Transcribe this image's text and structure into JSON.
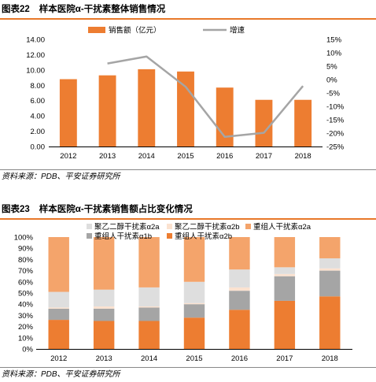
{
  "chart_data": [
    {
      "type": "bar",
      "figure_number": "图表22",
      "title": "样本医院α-干扰素整体销售情况",
      "categories": [
        "2012",
        "2013",
        "2014",
        "2015",
        "2016",
        "2017",
        "2018"
      ],
      "series": [
        {
          "name": "销售额（亿元）",
          "type": "bar",
          "axis": "left",
          "color": "#ed7d31",
          "values": [
            8.8,
            9.3,
            10.1,
            9.8,
            7.7,
            6.1,
            6.1
          ]
        },
        {
          "name": "增速",
          "type": "line",
          "axis": "right",
          "color": "#a5a5a5",
          "values": [
            null,
            6.0,
            8.6,
            -2.7,
            -21.4,
            -19.9,
            -2.4
          ]
        }
      ],
      "y_left": {
        "min": 0,
        "max": 14,
        "step": 2,
        "ticks": [
          "0.00",
          "2.00",
          "4.00",
          "6.00",
          "8.00",
          "10.00",
          "12.00",
          "14.00"
        ]
      },
      "y_right": {
        "min": -25,
        "max": 15,
        "step": 5,
        "ticks": [
          "15%",
          "10%",
          "5%",
          "0%",
          "-5%",
          "-10%",
          "-15%",
          "-20%",
          "-25%"
        ]
      },
      "legend_position": "top",
      "source": "资料来源：PDB、平安证券研究所"
    },
    {
      "type": "bar",
      "stacked": true,
      "figure_number": "图表23",
      "title": "样本医院α-干扰素销售额占比变化情况",
      "categories": [
        "2012",
        "2013",
        "2014",
        "2015",
        "2016",
        "2017",
        "2018"
      ],
      "series": [
        {
          "name": "重组人干扰素α2b",
          "color": "#ed7d31",
          "values": [
            26,
            25,
            25,
            28,
            35,
            43,
            47
          ]
        },
        {
          "name": "重组人干扰素α1b",
          "color": "#a5a5a5",
          "values": [
            10,
            11,
            12,
            12,
            17,
            22,
            23
          ]
        },
        {
          "name": "聚乙二醇干扰素α2b",
          "color": "#fbe2d0",
          "values": [
            1,
            2,
            1,
            1,
            3,
            2,
            2
          ]
        },
        {
          "name": "聚乙二醇干扰素α2a",
          "color": "#dedede",
          "values": [
            14,
            15,
            17,
            19,
            16,
            6,
            9
          ]
        },
        {
          "name": "重组人干扰素α2a",
          "color": "#f4a46b",
          "values": [
            49,
            47,
            45,
            40,
            29,
            27,
            19
          ]
        }
      ],
      "legend_order": [
        "聚乙二醇干扰素α2a",
        "聚乙二醇干扰素α2b",
        "重组人干扰素α2a",
        "重组人干扰素α1b",
        "重组人干扰素α2b"
      ],
      "y_axis": {
        "min": 0,
        "max": 100,
        "step": 10,
        "ticks": [
          "0%",
          "10%",
          "20%",
          "30%",
          "40%",
          "50%",
          "60%",
          "70%",
          "80%",
          "90%",
          "100%"
        ]
      },
      "legend_position": "top",
      "source": "资料来源：PDB、平安证券研究所"
    }
  ]
}
